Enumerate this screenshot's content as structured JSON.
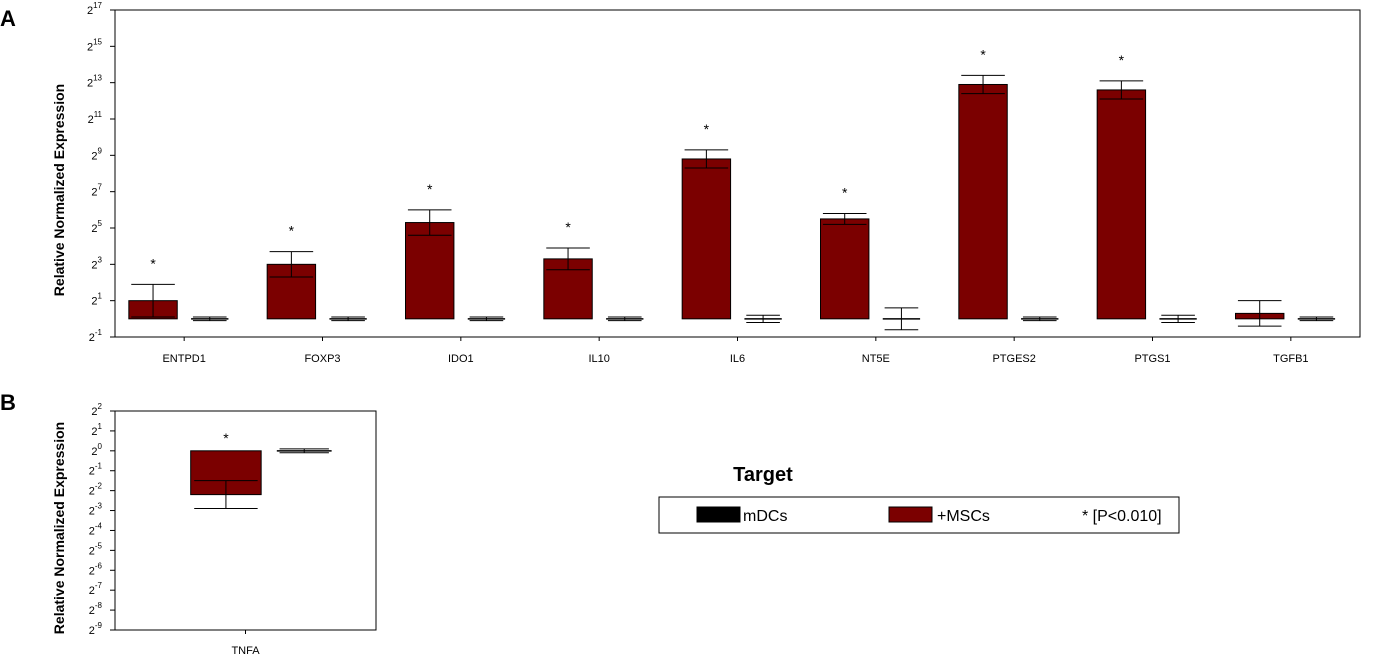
{
  "panel_a_label": "A",
  "panel_b_label": "B",
  "legend": {
    "title": "Target",
    "items": [
      {
        "label": "mDCs",
        "color": "#000000"
      },
      {
        "label": "+MSCs",
        "color": "#7b0000"
      }
    ],
    "significance": "* [P<0.010]"
  },
  "chart_data": [
    {
      "type": "bar",
      "panel": "A",
      "ylabel": "Relative Normalized Expression",
      "yscale": "log2",
      "ylim_exponent": [
        -1,
        17
      ],
      "ytick_exponents": [
        -1,
        1,
        3,
        5,
        7,
        9,
        11,
        13,
        15,
        17
      ],
      "categories": [
        "ENTPD1",
        "FOXP3",
        "IDO1",
        "IL10",
        "IL6",
        "NT5E",
        "PTGES2",
        "PTGS1",
        "TGFB1"
      ],
      "series": [
        {
          "name": "+MSCs",
          "color": "#7b0000",
          "log2_values": [
            1.0,
            3.0,
            5.3,
            3.3,
            8.8,
            5.5,
            12.9,
            12.6,
            0.3
          ],
          "log2_error": [
            0.9,
            0.7,
            0.7,
            0.6,
            0.5,
            0.3,
            0.5,
            0.5,
            0.7
          ],
          "significant": [
            true,
            true,
            true,
            true,
            true,
            true,
            true,
            true,
            false
          ]
        },
        {
          "name": "mDCs",
          "color": "#000000",
          "log2_values": [
            0,
            0,
            0,
            0,
            0,
            0,
            0,
            0,
            0
          ],
          "log2_error": [
            0.1,
            0.1,
            0.1,
            0.1,
            0.2,
            0.6,
            0.1,
            0.2,
            0.1
          ],
          "significant": [
            false,
            false,
            false,
            false,
            false,
            false,
            false,
            false,
            false
          ]
        }
      ]
    },
    {
      "type": "bar",
      "panel": "B",
      "ylabel": "Relative Normalized Expression",
      "yscale": "log2",
      "ylim_exponent": [
        -9,
        2
      ],
      "ytick_exponents": [
        2,
        1,
        0,
        -1,
        -2,
        -3,
        -4,
        -5,
        -6,
        -7,
        -8,
        -9
      ],
      "categories": [
        "TNFA"
      ],
      "series": [
        {
          "name": "+MSCs",
          "color": "#7b0000",
          "log2_values": [
            -2.2
          ],
          "log2_error": [
            0.7
          ],
          "significant": [
            true
          ]
        },
        {
          "name": "mDCs",
          "color": "#000000",
          "log2_values": [
            0
          ],
          "log2_error": [
            0.1
          ],
          "significant": [
            false
          ]
        }
      ]
    }
  ]
}
